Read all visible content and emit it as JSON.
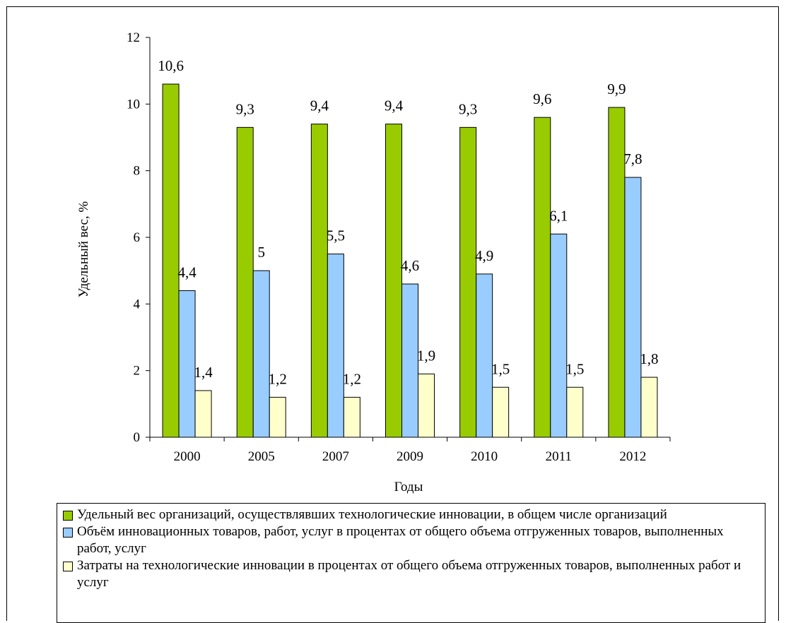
{
  "chart_data": {
    "type": "bar",
    "xlabel": "Годы",
    "ylabel": "Удельный вес, %",
    "ylim": [
      0,
      12
    ],
    "yticks": [
      0,
      2,
      4,
      6,
      8,
      10,
      12
    ],
    "categories": [
      "2000",
      "2005",
      "2007",
      "2009",
      "2010",
      "2011",
      "2012"
    ],
    "series": [
      {
        "name": "Удельный вес организаций, осуществлявших технологические инновации, в общем числе организаций",
        "color": "#99cc00",
        "values": [
          10.6,
          9.3,
          9.4,
          9.4,
          9.3,
          9.6,
          9.9
        ],
        "labels": [
          "10,6",
          "9,3",
          "9,4",
          "9,4",
          "9,3",
          "9,6",
          "9,9"
        ]
      },
      {
        "name": "Объём инновационных товаров, работ, услуг в процентах от общего объема отгруженных товаров, выполненных работ, услуг",
        "color": "#99ccff",
        "values": [
          4.4,
          5.0,
          5.5,
          4.6,
          4.9,
          6.1,
          7.8
        ],
        "labels": [
          "4,4",
          "5",
          "5,5",
          "4,6",
          "4,9",
          "6,1",
          "7,8"
        ]
      },
      {
        "name": "Затраты на технологические инновации в процентах от общего объема отгруженных товаров, выполненных работ и услуг",
        "color": "#ffffcc",
        "values": [
          1.4,
          1.2,
          1.2,
          1.9,
          1.5,
          1.5,
          1.8
        ],
        "labels": [
          "1,4",
          "1,2",
          "1,2",
          "1,9",
          "1,5",
          "1,5",
          "1,8"
        ]
      }
    ],
    "grid": false,
    "legend_position": "bottom"
  }
}
